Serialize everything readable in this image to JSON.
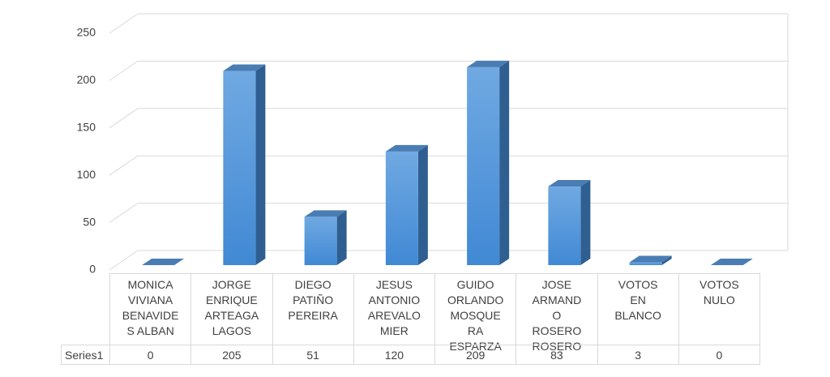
{
  "chart_data": {
    "type": "bar3d",
    "categories": [
      "MONICA VIVIANA BENAVIDES ALBAN",
      "JORGE ENRIQUE ARTEAGA LAGOS",
      "DIEGO PATIÑO PEREIRA",
      "JESUS ANTONIO AREVALO MIER",
      "GUIDO ORLANDO MOSQUERA ESPARZA",
      "JOSE ARMANDO ROSERO ROSERO",
      "VOTOS EN BLANCO",
      "VOTOS NULO"
    ],
    "series": [
      {
        "name": "Series1",
        "color": "#4a90d9",
        "values": [
          0,
          205,
          51,
          120,
          209,
          83,
          3,
          0
        ]
      }
    ],
    "ylim": [
      0,
      250
    ],
    "yticks": [
      0,
      50,
      100,
      150,
      200,
      250
    ],
    "grid": true,
    "data_table": true
  }
}
